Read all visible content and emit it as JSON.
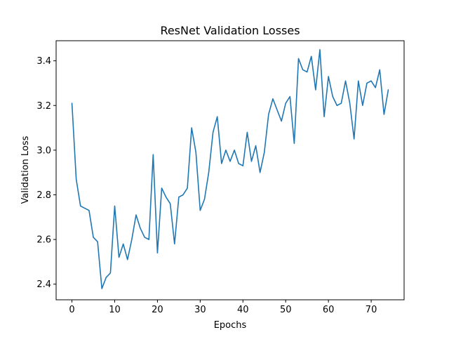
{
  "chart_data": {
    "type": "line",
    "title": "ResNet Validation Losses",
    "xlabel": "Epochs",
    "ylabel": "Validation Loss",
    "xlim": [
      -3.7,
      77.7
    ],
    "ylim": [
      2.33,
      3.49
    ],
    "xticks": [
      0,
      10,
      20,
      30,
      40,
      50,
      60,
      70
    ],
    "yticks": [
      2.4,
      2.6,
      2.8,
      3.0,
      3.2,
      3.4
    ],
    "ytick_labels": [
      "2.4",
      "2.6",
      "2.8",
      "3.0",
      "3.2",
      "3.4"
    ],
    "grid": false,
    "legend": "none",
    "series": [
      {
        "color": "#1f77b4",
        "x": [
          0,
          1,
          2,
          3,
          4,
          5,
          6,
          7,
          8,
          9,
          10,
          11,
          12,
          13,
          14,
          15,
          16,
          17,
          18,
          19,
          20,
          21,
          22,
          23,
          24,
          25,
          26,
          27,
          28,
          29,
          30,
          31,
          32,
          33,
          34,
          35,
          36,
          37,
          38,
          39,
          40,
          41,
          42,
          43,
          44,
          45,
          46,
          47,
          48,
          49,
          50,
          51,
          52,
          53,
          54,
          55,
          56,
          57,
          58,
          59,
          60,
          61,
          62,
          63,
          64,
          65,
          66,
          67,
          68,
          69,
          70,
          71,
          72,
          73,
          74
        ],
        "y": [
          3.21,
          2.87,
          2.75,
          2.74,
          2.73,
          2.61,
          2.59,
          2.38,
          2.43,
          2.45,
          2.75,
          2.52,
          2.58,
          2.51,
          2.6,
          2.71,
          2.65,
          2.61,
          2.6,
          2.98,
          2.54,
          2.83,
          2.79,
          2.76,
          2.58,
          2.79,
          2.8,
          2.83,
          3.1,
          2.99,
          2.73,
          2.78,
          2.9,
          3.08,
          3.15,
          2.94,
          3.0,
          2.95,
          3.0,
          2.94,
          2.93,
          3.08,
          2.95,
          3.02,
          2.9,
          2.99,
          3.16,
          3.23,
          3.18,
          3.13,
          3.21,
          3.24,
          3.03,
          3.41,
          3.36,
          3.35,
          3.42,
          3.27,
          3.45,
          3.15,
          3.33,
          3.24,
          3.2,
          3.21,
          3.31,
          3.21,
          3.05,
          3.31,
          3.2,
          3.3,
          3.31,
          3.28,
          3.36,
          3.16,
          3.27
        ]
      }
    ]
  }
}
